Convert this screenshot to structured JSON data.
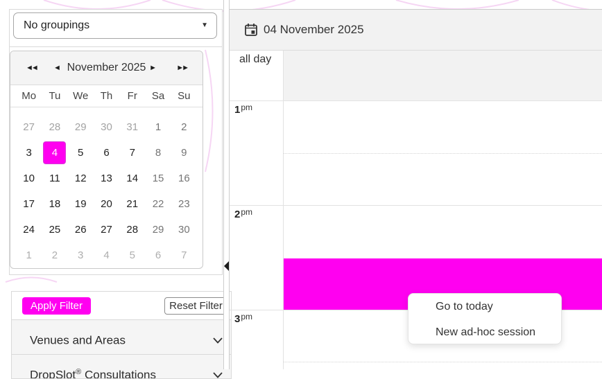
{
  "colors": {
    "accent": "#ff00f0",
    "panel_gray": "#f2f2f2",
    "curve_pink": "#f6d6f4"
  },
  "sidebar": {
    "groupings": {
      "value": "No groupings",
      "caret_icon": "▼"
    },
    "calendar": {
      "title": "November 2025",
      "nav": [
        {
          "name": "prev-year",
          "glyph": "◄◄"
        },
        {
          "name": "prev-month",
          "glyph": "◄"
        },
        {
          "name": "next-month",
          "glyph": "►"
        },
        {
          "name": "next-year",
          "glyph": "►►"
        }
      ],
      "day_headers": [
        "Mo",
        "Tu",
        "We",
        "Th",
        "Fr",
        "Sa",
        "Su"
      ],
      "weeks": [
        [
          {
            "day": 27,
            "type": "prev"
          },
          {
            "day": 28,
            "type": "prev"
          },
          {
            "day": 29,
            "type": "prev"
          },
          {
            "day": 30,
            "type": "prev"
          },
          {
            "day": 31,
            "type": "prev"
          },
          {
            "day": 1,
            "type": "weekend"
          },
          {
            "day": 2,
            "type": "weekend"
          }
        ],
        [
          {
            "day": 3,
            "type": "normal"
          },
          {
            "day": 4,
            "type": "selected"
          },
          {
            "day": 5,
            "type": "normal"
          },
          {
            "day": 6,
            "type": "normal"
          },
          {
            "day": 7,
            "type": "normal"
          },
          {
            "day": 8,
            "type": "weekend"
          },
          {
            "day": 9,
            "type": "weekend"
          }
        ],
        [
          {
            "day": 10,
            "type": "normal"
          },
          {
            "day": 11,
            "type": "normal"
          },
          {
            "day": 12,
            "type": "normal"
          },
          {
            "day": 13,
            "type": "normal"
          },
          {
            "day": 14,
            "type": "normal"
          },
          {
            "day": 15,
            "type": "weekend"
          },
          {
            "day": 16,
            "type": "weekend"
          }
        ],
        [
          {
            "day": 17,
            "type": "normal"
          },
          {
            "day": 18,
            "type": "normal"
          },
          {
            "day": 19,
            "type": "normal"
          },
          {
            "day": 20,
            "type": "normal"
          },
          {
            "day": 21,
            "type": "normal"
          },
          {
            "day": 22,
            "type": "weekend"
          },
          {
            "day": 23,
            "type": "weekend"
          }
        ],
        [
          {
            "day": 24,
            "type": "normal"
          },
          {
            "day": 25,
            "type": "normal"
          },
          {
            "day": 26,
            "type": "normal"
          },
          {
            "day": 27,
            "type": "normal"
          },
          {
            "day": 28,
            "type": "normal"
          },
          {
            "day": 29,
            "type": "weekend"
          },
          {
            "day": 30,
            "type": "weekend"
          }
        ],
        [
          {
            "day": 1,
            "type": "next"
          },
          {
            "day": 2,
            "type": "next"
          },
          {
            "day": 3,
            "type": "next"
          },
          {
            "day": 4,
            "type": "next"
          },
          {
            "day": 5,
            "type": "next"
          },
          {
            "day": 6,
            "type": "next"
          },
          {
            "day": 7,
            "type": "next"
          }
        ]
      ],
      "selected_day": "4 November 2025"
    },
    "filters": {
      "apply_label": "Apply Filter",
      "reset_label": "Reset Filter",
      "sections": [
        {
          "brand": "Venues and Areas",
          "reg": "",
          "rest": ""
        },
        {
          "brand": "DropSlot",
          "reg": "®",
          "rest": " Consultations"
        }
      ]
    }
  },
  "main": {
    "header": {
      "date_label": "04 November 2025"
    },
    "all_day_label": "all day",
    "time_slots": [
      {
        "hour": "1",
        "meridiem": "pm"
      },
      {
        "hour": "2",
        "meridiem": "pm"
      },
      {
        "hour": "3",
        "meridiem": "pm"
      }
    ],
    "event": {
      "color": "#ff00f0",
      "covers": "2:30 pm – 3:00 pm"
    },
    "context_menu": {
      "items": [
        {
          "label": "Go to today"
        },
        {
          "label": "New ad-hoc session"
        }
      ]
    }
  }
}
